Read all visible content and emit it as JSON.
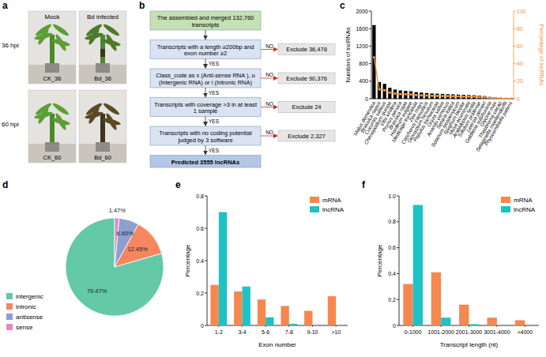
{
  "photo_panel": {
    "panel": "a",
    "columns": [
      "Mock",
      "Bd infected"
    ],
    "rows": [
      "36 hpi",
      "60 hpi"
    ],
    "captions": [
      [
        "CK_36",
        "Bd_36"
      ],
      [
        "CK_60",
        "Bd_60"
      ]
    ]
  },
  "flowchart": {
    "panel": "b",
    "start": "The assembled and merged 132,760 transcripts",
    "steps": [
      {
        "criterion": "Transcripts with a length ≥200bp and exon number ≥2",
        "yes": "YES",
        "no": "NO",
        "exclude": "Exclude 36,478"
      },
      {
        "criterion": "Class_code as x (Anti-sense RNA ), u (Intergenic RNA) or i (Intronic RNA)",
        "yes": "YES",
        "no": "NO",
        "exclude": "Exclude 90,376"
      },
      {
        "criterion": "Transcripts with coverage >3 in at least 1 sample",
        "yes": "YES",
        "no": "NO",
        "exclude": "Exclude 24"
      },
      {
        "criterion": "Transcripts with no coding potential judged by 3 software",
        "yes": "YES",
        "no": "NO",
        "exclude": "Exclude 2,327"
      }
    ],
    "result": "Predicted 3555 lncRNAs"
  },
  "chart_data": [
    {
      "type": "bar",
      "panel": "c",
      "categories": [
        "Malus domestica",
        "Brassica napus",
        "Cucumis sativus",
        "Chenopodium quinoa",
        "Vitis vinifera",
        "Prunus persica",
        "Brassica rapa",
        "Hordeum vulgare",
        "Medicago truncatula",
        "Zea mays",
        "Corchorus capsularis",
        "Gossypium hirsutum",
        "Populus trichocarpa",
        "Oryza sativa",
        "Ananas comosus",
        "Setaria italica",
        "Solanum lycopersicum",
        "Sorghum bicolor",
        "Musa acuminata",
        "Arabidopsis lyrata",
        "Trifolium pratense",
        "Leersia perrieri",
        "Galdieria sulphuraria",
        "Glycine max",
        "Theobroma cacao",
        "Selaginella moellendorffii",
        "Physcomitrella patens"
      ],
      "series": [
        {
          "type": "bar",
          "color": "#000000",
          "values": [
            1680,
            380,
            340,
            250,
            210,
            190,
            180,
            170,
            150,
            140,
            130,
            120,
            115,
            110,
            105,
            100,
            95,
            90,
            85,
            80,
            70,
            60,
            40,
            30,
            20,
            8,
            5
          ]
        },
        {
          "type": "line",
          "axis": "y2",
          "color": "#f0923e",
          "marker": "circle",
          "values": [
            47.3,
            10.7,
            9.6,
            7.0,
            5.9,
            5.3,
            5.1,
            4.8,
            4.2,
            3.9,
            3.7,
            3.4,
            3.2,
            3.1,
            3.0,
            2.8,
            2.7,
            2.5,
            2.4,
            2.3,
            2.0,
            1.7,
            1.1,
            0.8,
            0.6,
            0.2,
            0.1
          ]
        }
      ],
      "y_label": "Numbers of lncRNAs",
      "y2_label": "Percentage of lncRNAs",
      "ylim": [
        0,
        2000
      ],
      "yticks": [
        0,
        400,
        800,
        1200,
        1600,
        2000
      ],
      "y2lim": [
        0,
        100
      ],
      "y2ticks": [
        0,
        20,
        40,
        60,
        80,
        100
      ]
    },
    {
      "type": "pie",
      "panel": "d",
      "categories": [
        "intergenic",
        "intronic",
        "antisense",
        "sense"
      ],
      "values": [
        79.47,
        12.45,
        6.6,
        1.47
      ],
      "value_labels": [
        "79.47%",
        "12.45%",
        "6.60%",
        "1.47%"
      ],
      "colors": [
        "#63c9a6",
        "#f4875f",
        "#8d9fd1",
        "#e08cc4"
      ],
      "data_labels": true,
      "legend": "left"
    },
    {
      "type": "bar",
      "panel": "e",
      "categories": [
        "1-2",
        "3-4",
        "5-6",
        "7-8",
        "9-10",
        ">10"
      ],
      "series": [
        {
          "name": "mRNA",
          "color": "#f5874f",
          "values": [
            0.25,
            0.21,
            0.16,
            0.12,
            0.09,
            0.18
          ]
        },
        {
          "name": "lncRNA",
          "color": "#1fc2c4",
          "values": [
            0.7,
            0.24,
            0.05,
            0.01,
            0.0,
            0.0
          ]
        }
      ],
      "x_label": "Exon number",
      "y_label": "Percentage",
      "ylim": [
        0,
        0.8
      ],
      "yticks": [
        0,
        0.2,
        0.4,
        0.6,
        0.8
      ],
      "legend": "upper right"
    },
    {
      "type": "bar",
      "panel": "f",
      "categories": [
        "0-1000",
        "1001-2000",
        "2001-3000",
        "3001-4000",
        ">4000"
      ],
      "series": [
        {
          "name": "mRNA",
          "color": "#f5874f",
          "values": [
            0.32,
            0.41,
            0.16,
            0.06,
            0.04
          ]
        },
        {
          "name": "lncRNA",
          "color": "#1fc2c4",
          "values": [
            0.93,
            0.06,
            0.01,
            0.0,
            0.0
          ]
        }
      ],
      "x_label": "Transcript length (nt)",
      "y_label": "Percentage",
      "ylim": [
        0,
        1
      ],
      "yticks": [
        0,
        0.2,
        0.4,
        0.6,
        0.8,
        {
          "value": 1,
          "label": "1.0"
        }
      ],
      "legend": "upper right"
    }
  ]
}
